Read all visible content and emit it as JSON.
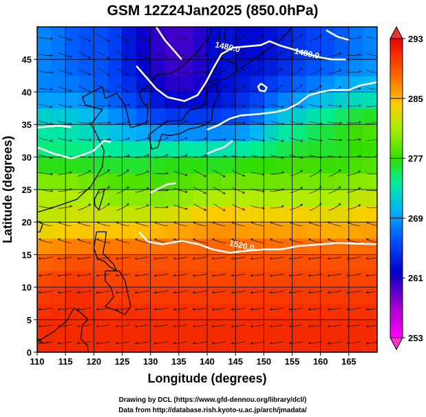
{
  "title": "GSM 12Z24Jan2025 (850.0hPa)",
  "chart_data": {
    "type": "heatmap",
    "title": "GSM 12Z24Jan2025 (850.0hPa)",
    "xlabel": "Longitude (degrees)",
    "ylabel": "Latitude  (degrees)",
    "xlim": [
      110,
      170
    ],
    "ylim": [
      0,
      50
    ],
    "x_ticks": [
      "110",
      "115",
      "120",
      "125",
      "130",
      "135",
      "140",
      "145",
      "150",
      "155",
      "160",
      "165"
    ],
    "y_ticks": [
      "0",
      "5",
      "10",
      "15",
      "20",
      "25",
      "30",
      "35",
      "40",
      "45"
    ],
    "grid": true,
    "colorbar": {
      "range": [
        253,
        293
      ],
      "ticks": [
        "253",
        "261",
        "269",
        "277",
        "285",
        "293"
      ],
      "extend": "both"
    },
    "contour_labels": [
      {
        "text": "1480.0",
        "lon": 143.5,
        "lat": 46.5
      },
      {
        "text": "1480.0",
        "lon": 157.5,
        "lat": 45.5
      },
      {
        "text": "1520.0",
        "lon": 146.0,
        "lat": 16.0
      }
    ],
    "temperature_field_samples": [
      {
        "lat": 45,
        "values": [
          268,
          266,
          266,
          262,
          260,
          260,
          263,
          262,
          263,
          265,
          266,
          268
        ]
      },
      {
        "lat": 40,
        "values": [
          268,
          268,
          266,
          264,
          261,
          261,
          262,
          264,
          266,
          268,
          270,
          271
        ]
      },
      {
        "lat": 35,
        "values": [
          273,
          272,
          270,
          268,
          266,
          266,
          266,
          267,
          272,
          274,
          276,
          278
        ]
      },
      {
        "lat": 30,
        "values": [
          275,
          275,
          275,
          275,
          276,
          276,
          275,
          276,
          276,
          277,
          276,
          277
        ]
      },
      {
        "lat": 25,
        "values": [
          281,
          281,
          279,
          279,
          278,
          279,
          280,
          280,
          280,
          280,
          280,
          281
        ]
      },
      {
        "lat": 20,
        "values": [
          282,
          283,
          283,
          283,
          284,
          285,
          286,
          285,
          285,
          285,
          284,
          285
        ]
      },
      {
        "lat": 15,
        "values": [
          288,
          289,
          289,
          289,
          289,
          289,
          289,
          289,
          289,
          289,
          289,
          289
        ]
      },
      {
        "lat": 10,
        "values": [
          290,
          291,
          290,
          290,
          290,
          290,
          290,
          290,
          290,
          290,
          290,
          290
        ]
      },
      {
        "lat": 5,
        "values": [
          291,
          291,
          291,
          291,
          291,
          291,
          291,
          291,
          291,
          291,
          291,
          291
        ]
      },
      {
        "lat": 0,
        "values": [
          291,
          291,
          291,
          291,
          291,
          291,
          291,
          291,
          291,
          291,
          291,
          291
        ]
      }
    ]
  },
  "colors": {
    "cbar_stops": [
      "#ff00ff",
      "#0000cc",
      "#0077ff",
      "#00ccff",
      "#00ff88",
      "#44ee00",
      "#ccee00",
      "#ffaa00",
      "#ff3300",
      "#ee0000"
    ],
    "contour": "#ffffff",
    "grid": "#000000",
    "coast": "#000000"
  },
  "credits": [
    "Drawing by DCL (https://www.gfd-dennou.org/library/dcl/)",
    "Data from http://database.rish.kyoto-u.ac.jp/arch/jmadata/"
  ]
}
